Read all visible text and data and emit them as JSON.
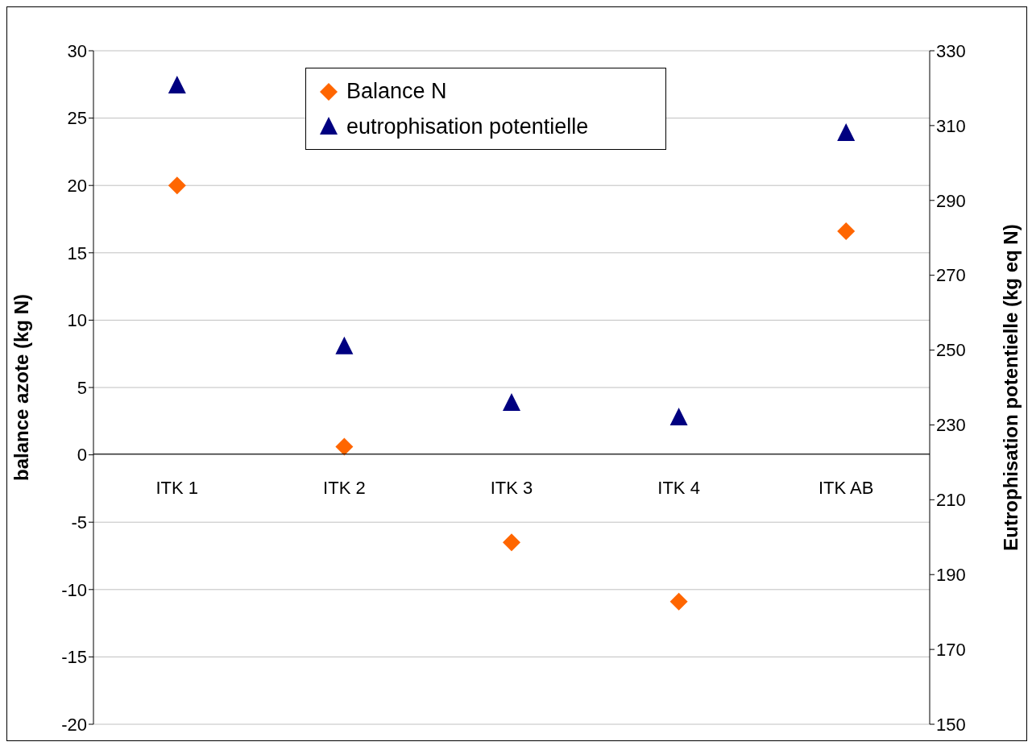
{
  "chart_data": {
    "type": "scatter",
    "categories": [
      "ITK 1",
      "ITK 2",
      "ITK 3",
      "ITK 4",
      "ITK AB"
    ],
    "ylabel": "balance azote (kg N)",
    "y2label": "Eutrophisation potentielle (kg eq N)",
    "ylim": [
      -20,
      30
    ],
    "yticks": [
      -20,
      -15,
      -10,
      -5,
      0,
      5,
      10,
      15,
      20,
      25,
      30
    ],
    "y2lim": [
      150,
      330
    ],
    "y2ticks": [
      150,
      170,
      190,
      210,
      230,
      250,
      270,
      290,
      310,
      330
    ],
    "grid": "y",
    "legend": "top",
    "series": [
      {
        "name": "Balance N",
        "color": "#ff6600",
        "marker": "diamond",
        "values": [
          20.0,
          0.6,
          -6.5,
          -10.9,
          16.6
        ]
      },
      {
        "name": "eutrophisation potentielle",
        "color": "#000080",
        "marker": "triangle",
        "axis": "y2",
        "values": [
          320.5,
          250.8,
          235.7,
          231.8,
          307.8
        ]
      }
    ]
  }
}
